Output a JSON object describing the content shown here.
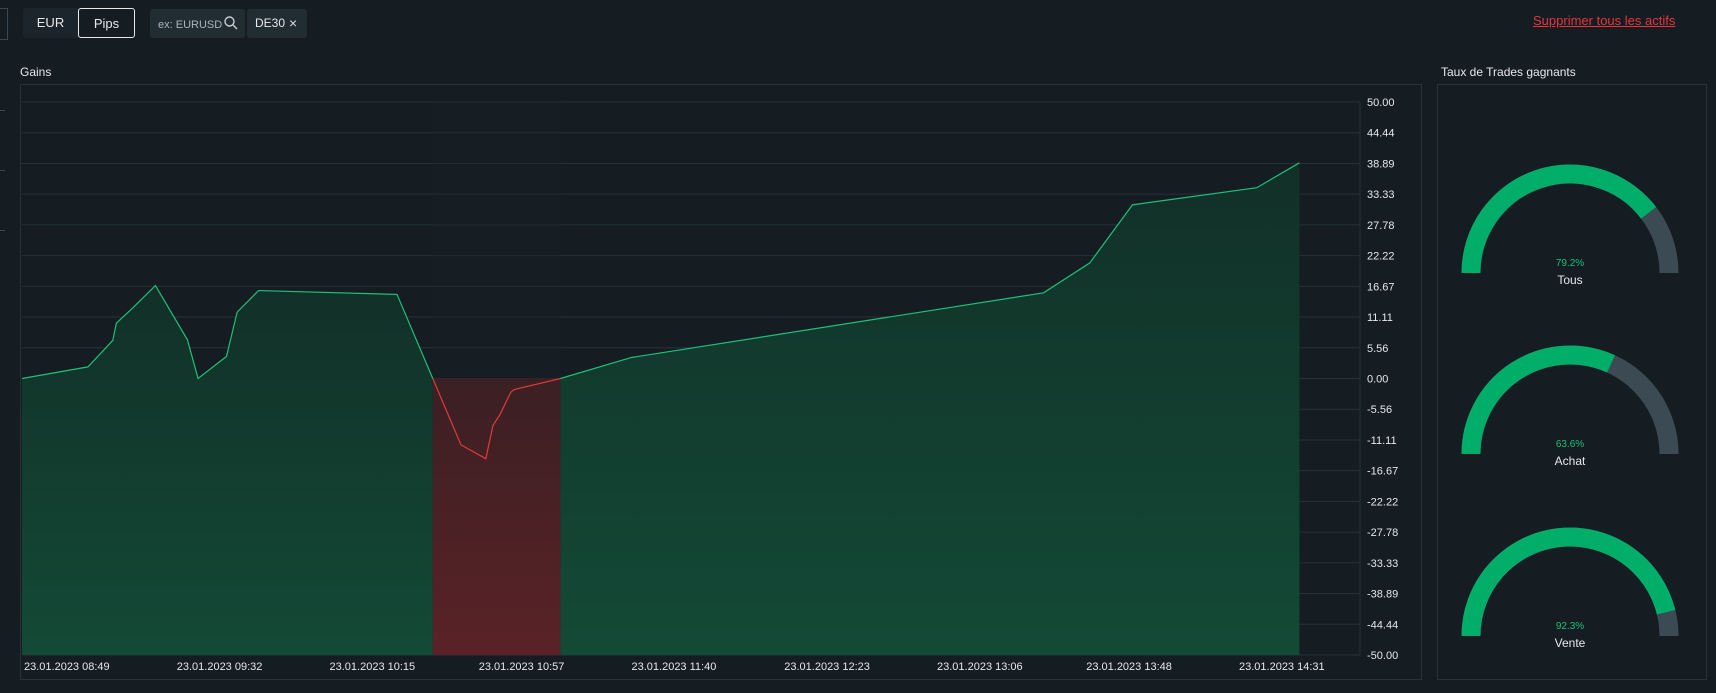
{
  "toolbar": {
    "eur_label": "EUR",
    "pips_label": "Pips",
    "search_placeholder": "ex: EURUSD",
    "chip_label": "DE30",
    "chip_close": "×",
    "remove_all": "Supprimer tous les actifs"
  },
  "gains_panel": {
    "title": "Gains"
  },
  "winrate_panel": {
    "title": "Taux de Trades gagnants",
    "gauges": [
      {
        "label": "Tous",
        "value_text": "79.2%",
        "value": 79.2
      },
      {
        "label": "Achat",
        "value_text": "63.6%",
        "value": 63.6
      },
      {
        "label": "Vente",
        "value_text": "92.3%",
        "value": 92.3
      }
    ]
  },
  "colors": {
    "positive": "#1ec07a",
    "negative": "#e03a3a",
    "gauge_track": "#3b4a53",
    "gauge_fill": "#00ae6a"
  },
  "chart_data": {
    "type": "area",
    "title": "",
    "xlabel": "",
    "ylabel": "",
    "ylim": [
      -50,
      50
    ],
    "grid": true,
    "y_ticks": [
      "50.00",
      "44.44",
      "38.89",
      "33.33",
      "27.78",
      "22.22",
      "16.67",
      "11.11",
      "5.56",
      "0.00",
      "-5.56",
      "-11.11",
      "-16.67",
      "-22.22",
      "-27.78",
      "-33.33",
      "-38.89",
      "-44.44",
      "-50.00"
    ],
    "x_tick_labels": [
      "23.01.2023 08:49",
      "23.01.2023 09:32",
      "23.01.2023 10:15",
      "23.01.2023 10:57",
      "23.01.2023 11:40",
      "23.01.2023 12:23",
      "23.01.2023 13:06",
      "23.01.2023 13:48",
      "23.01.2023 14:31"
    ],
    "series": [
      {
        "x": [
          "08:49",
          "09:07",
          "09:14",
          "09:15",
          "09:20",
          "09:26",
          "09:35",
          "09:38",
          "09:46",
          "09:49",
          "09:55",
          "10:34",
          "10:52",
          "10:59",
          "11:01",
          "11:03",
          "11:06",
          "11:07",
          "11:20",
          "11:40",
          "13:36",
          "13:49",
          "14:01",
          "14:36",
          "14:48"
        ],
        "y": [
          0.0,
          2.1,
          6.9,
          10.0,
          13.0,
          16.8,
          7.0,
          0.0,
          4.0,
          12.0,
          15.9,
          15.2,
          -12.0,
          -14.5,
          -8.5,
          -6.5,
          -2.5,
          -2.0,
          0.0,
          3.8,
          15.5,
          20.9,
          31.4,
          34.5,
          39.0
        ]
      }
    ]
  }
}
